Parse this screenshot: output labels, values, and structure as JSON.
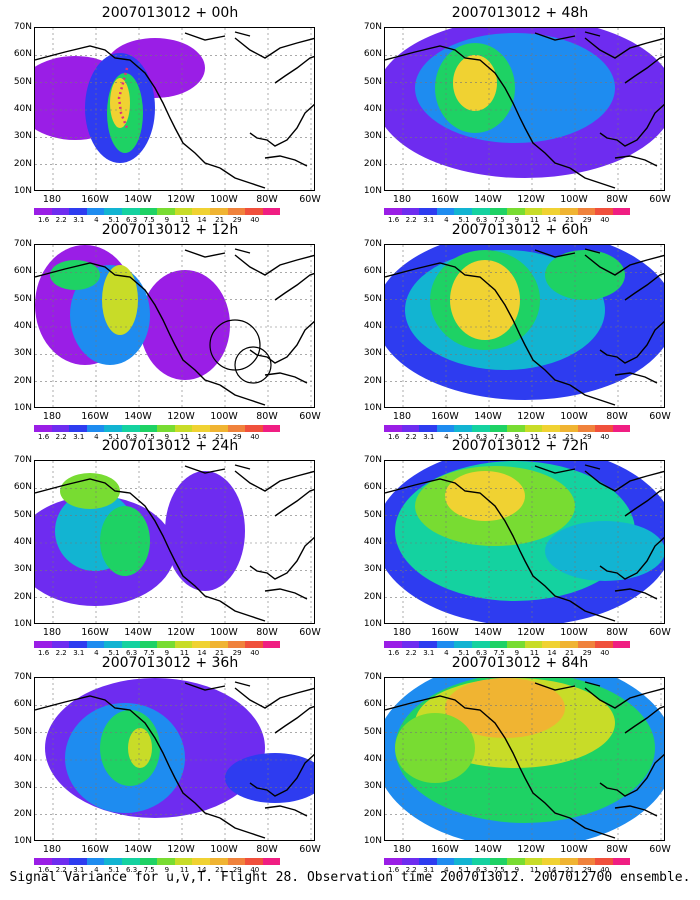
{
  "panels": [
    {
      "title": "2007013012 + 00h"
    },
    {
      "title": "2007013012 + 12h"
    },
    {
      "title": "2007013012 + 24h"
    },
    {
      "title": "2007013012 + 36h"
    },
    {
      "title": "2007013012 + 48h"
    },
    {
      "title": "2007013012 + 60h"
    },
    {
      "title": "2007013012 + 72h"
    },
    {
      "title": "2007013012 + 84h"
    }
  ],
  "lat_ticks": [
    "70N",
    "60N",
    "50N",
    "40N",
    "30N",
    "20N",
    "10N"
  ],
  "lon_ticks": [
    "180",
    "160W",
    "140W",
    "120W",
    "100W",
    "80W",
    "60W"
  ],
  "colorbar": {
    "levels": [
      "1.6",
      "2.2",
      "3.1",
      "4",
      "5.1",
      "6.3",
      "7.5",
      "9",
      "11",
      "14",
      "21",
      "29",
      "40"
    ],
    "colors": [
      "#9a1ee6",
      "#6e2cf0",
      "#2e3cf0",
      "#1e8cf0",
      "#12b4d2",
      "#14d2a0",
      "#1ed264",
      "#78dc32",
      "#c8dc28",
      "#f0d232",
      "#f0b432",
      "#f0823c",
      "#f0503c",
      "#f01e82",
      "#ffffff"
    ]
  },
  "caption": "Signal Variance for u,v,T. Flight 28. Observation time 2007013012. 2007012700 ensemble."
}
